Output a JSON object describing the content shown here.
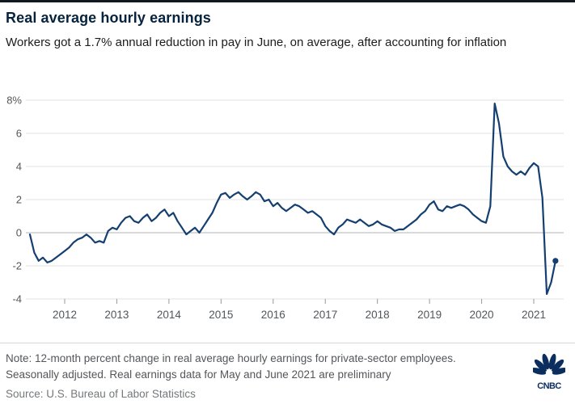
{
  "header": {
    "title": "Real average hourly earnings",
    "subtitle": "Workers got a 1.7% annual reduction in pay in June, on average, after accounting for inflation"
  },
  "chart_data": {
    "type": "line",
    "title": "Real average hourly earnings",
    "ylabel": "12-month percent change",
    "ylim": [
      -4,
      8
    ],
    "y_ticks": [
      "8%",
      "6",
      "4",
      "2",
      "0",
      "-2",
      "-4"
    ],
    "y_tick_values": [
      8,
      6,
      4,
      2,
      0,
      -2,
      -4
    ],
    "x_ticks": [
      2012,
      2013,
      2014,
      2015,
      2016,
      2017,
      2018,
      2019,
      2020,
      2021
    ],
    "start": {
      "year": 2011,
      "month": 5
    },
    "frequency": "monthly",
    "grid": true,
    "legend_position": "none",
    "end_point_marker": true,
    "series": [
      {
        "name": "Real average hourly earnings, 12-month percent change",
        "values": [
          -0.1,
          -1.2,
          -1.7,
          -1.5,
          -1.8,
          -1.7,
          -1.5,
          -1.3,
          -1.1,
          -0.9,
          -0.6,
          -0.4,
          -0.3,
          -0.1,
          -0.3,
          -0.6,
          -0.5,
          -0.6,
          0.1,
          0.3,
          0.2,
          0.6,
          0.9,
          1.0,
          0.7,
          0.6,
          0.9,
          1.1,
          0.7,
          0.9,
          1.2,
          1.4,
          1.0,
          1.2,
          0.7,
          0.3,
          -0.1,
          0.1,
          0.3,
          0.0,
          0.4,
          0.8,
          1.2,
          1.8,
          2.3,
          2.4,
          2.1,
          2.3,
          2.45,
          2.2,
          2.0,
          2.2,
          2.45,
          2.3,
          1.9,
          2.0,
          1.6,
          1.8,
          1.5,
          1.3,
          1.5,
          1.7,
          1.6,
          1.4,
          1.2,
          1.3,
          1.1,
          0.9,
          0.4,
          0.1,
          -0.1,
          0.3,
          0.5,
          0.8,
          0.7,
          0.6,
          0.8,
          0.6,
          0.4,
          0.5,
          0.7,
          0.5,
          0.4,
          0.3,
          0.1,
          0.2,
          0.2,
          0.4,
          0.6,
          0.8,
          1.1,
          1.3,
          1.7,
          1.9,
          1.4,
          1.3,
          1.6,
          1.5,
          1.6,
          1.7,
          1.6,
          1.4,
          1.1,
          0.9,
          0.7,
          0.6,
          1.6,
          7.8,
          6.6,
          4.6,
          4.0,
          3.7,
          3.5,
          3.7,
          3.5,
          3.9,
          4.2,
          4.0,
          2.1,
          -3.7,
          -3.0,
          -1.7
        ]
      }
    ],
    "last_value": -1.7
  },
  "footer": {
    "note": "Note: 12-month percent change in real average hourly earnings for private-sector employees. Seasonally adjusted. Real earnings data for May and June 2021 are preliminary",
    "source": "Source: U.S. Bureau of Labor Statistics",
    "logo_text": "CNBC"
  },
  "colors": {
    "line": "#143f70",
    "grid": "#e1e1e1",
    "zero_line": "#b3b3b3",
    "tick": "#9a9a9a",
    "axis_text": "#53565a",
    "logo": "#0b2e5f"
  }
}
